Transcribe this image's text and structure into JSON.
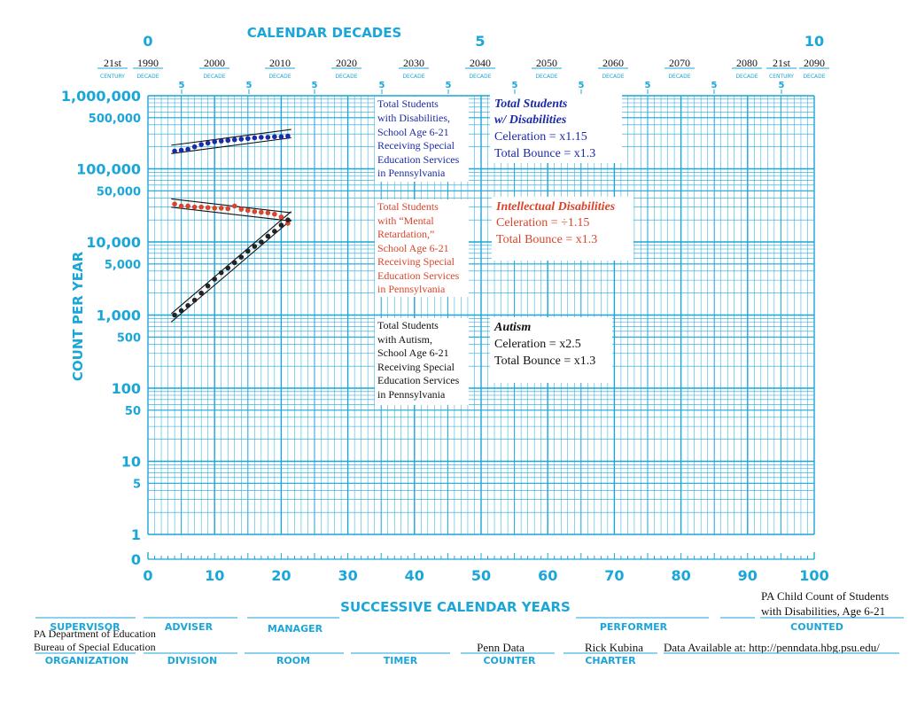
{
  "header": {
    "top_title": "CALENDAR DECADES",
    "decade_numbers": [
      "0",
      "5",
      "10"
    ],
    "century_label": "CENTURY",
    "decade_label": "DECADE",
    "five_label": "5",
    "decade_years": [
      {
        "top": "21st",
        "bottom": "CENTURY"
      },
      {
        "top": "1990",
        "bottom": "DECADE"
      },
      {
        "top": "2000",
        "bottom": "DECADE"
      },
      {
        "top": "2010",
        "bottom": "DECADE"
      },
      {
        "top": "2020",
        "bottom": "DECADE"
      },
      {
        "top": "2030",
        "bottom": "DECADE"
      },
      {
        "top": "2040",
        "bottom": "DECADE"
      },
      {
        "top": "2050",
        "bottom": "DECADE"
      },
      {
        "top": "2060",
        "bottom": "DECADE"
      },
      {
        "top": "2070",
        "bottom": "DECADE"
      },
      {
        "top": "2080",
        "bottom": "DECADE"
      },
      {
        "top": "21st",
        "bottom": "CENTURY"
      },
      {
        "top": "2090",
        "bottom": "DECADE"
      }
    ]
  },
  "axes": {
    "ylabel": "COUNT PER YEAR",
    "xlabel": "SUCCESSIVE CALENDAR YEARS",
    "y_ticks": [
      "1,000,000",
      "500,000",
      "100,000",
      "50,000",
      "10,000",
      "5,000",
      "1,000",
      "500",
      "100",
      "50",
      "10",
      "5",
      "1",
      "0"
    ],
    "x_ticks": [
      "0",
      "10",
      "20",
      "30",
      "40",
      "50",
      "60",
      "70",
      "80",
      "90",
      "100"
    ]
  },
  "annotations": {
    "total_desc": [
      "Total Students",
      "with Disabilities,",
      "School Age 6-21",
      "Receiving Special",
      "Education Services",
      "in Pennsylvania"
    ],
    "total_box": {
      "title1": "Total Students",
      "title2": "w/ Disabilities",
      "celeration": "Celeration = x1.15",
      "bounce": "Total Bounce = x1.3"
    },
    "id_desc": [
      "Total Students",
      "with “Mental",
      "Retardation,”",
      "School Age 6-21",
      "Receiving Special",
      "Education Services",
      "in Pennsylvania"
    ],
    "id_box": {
      "title": "Intellectual Disabilities",
      "celeration": "Celeration = ÷1.15",
      "bounce": "Total Bounce = x1.3"
    },
    "autism_desc": [
      "Total Students",
      "with Autism,",
      "School Age 6-21",
      "Receiving Special",
      "Education Services",
      "in Pennsylvania"
    ],
    "autism_box": {
      "title": "Autism",
      "celeration": "Celeration = x2.5",
      "bounce": "Total Bounce = x1.3"
    }
  },
  "footer": {
    "supervisor": "SUPERVISOR",
    "adviser": "ADVISER",
    "manager": "MANAGER",
    "performer": "PERFORMER",
    "counted": "COUNTED",
    "counted_value_line1": "PA Child Count of Students",
    "counted_value_line2": "with Disabilities, Age 6-21",
    "organization": "ORGANIZATION",
    "organization_value_line1": "PA Department of Education",
    "organization_value_line2": "Bureau of Special Education",
    "division": "DIVISION",
    "room": "ROOM",
    "timer": "TIMER",
    "counter": "COUNTER",
    "counter_value": "Penn Data",
    "charter": "CHARTER",
    "charter_value": "Rick Kubina",
    "data_available": "Data Available at: http://penndata.hbg.psu.edu/"
  },
  "colors": {
    "grid": "#1aa6d9",
    "total": "#1c2aa8",
    "id": "#d8452b",
    "autism": "#222222"
  },
  "chart_data": {
    "type": "scatter",
    "title": "",
    "xlabel": "SUCCESSIVE CALENDAR YEARS",
    "ylabel": "COUNT PER YEAR",
    "xlim": [
      0,
      100
    ],
    "ylim": [
      1,
      1000000
    ],
    "yscale": "log",
    "grid": true,
    "series": [
      {
        "name": "Total Students w/ Disabilities",
        "color": "#1c2aa8",
        "x": [
          4,
          5,
          6,
          7,
          8,
          9,
          10,
          11,
          12,
          13,
          14,
          15,
          16,
          17,
          18,
          19,
          20,
          21
        ],
        "y": [
          175000,
          180000,
          185000,
          200000,
          215000,
          225000,
          235000,
          240000,
          245000,
          250000,
          255000,
          260000,
          265000,
          270000,
          270000,
          275000,
          275000,
          280000
        ],
        "celeration": "x1.15",
        "bounce": "x1.3"
      },
      {
        "name": "Intellectual Disabilities",
        "color": "#d8452b",
        "x": [
          4,
          5,
          6,
          7,
          8,
          9,
          10,
          11,
          12,
          13,
          14,
          15,
          16,
          17,
          18,
          19,
          20,
          21
        ],
        "y": [
          33000,
          31000,
          31000,
          30000,
          30000,
          29500,
          29000,
          29000,
          28500,
          31000,
          28000,
          27000,
          26000,
          25500,
          25000,
          24000,
          22000,
          18000
        ],
        "celeration": "÷1.15",
        "bounce": "x1.3"
      },
      {
        "name": "Autism",
        "color": "#222222",
        "x": [
          4,
          5,
          6,
          7,
          8,
          9,
          10,
          11,
          12,
          13,
          14,
          15,
          16,
          17,
          18,
          19,
          20,
          21
        ],
        "y": [
          1000,
          1150,
          1350,
          1600,
          2000,
          2500,
          3100,
          3800,
          4400,
          5200,
          6200,
          7500,
          8700,
          10000,
          12000,
          14000,
          17000,
          20000
        ],
        "celeration": "x2.5",
        "bounce": "x1.3"
      }
    ]
  }
}
